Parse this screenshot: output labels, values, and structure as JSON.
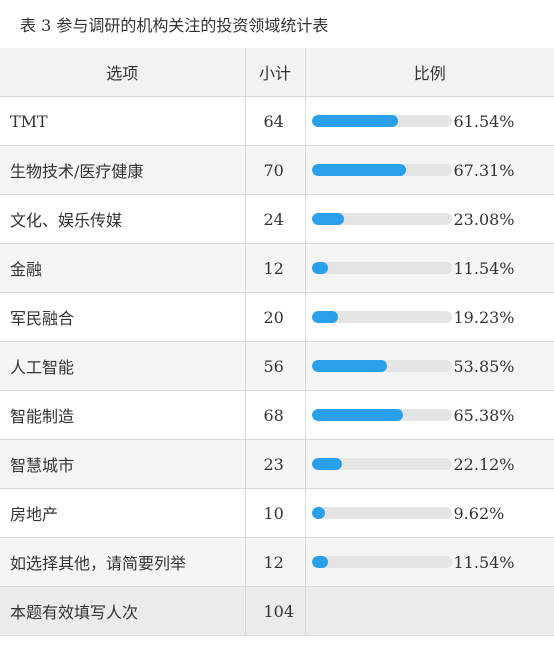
{
  "caption": "表 3  参与调研的机构关注的投资领域统计表",
  "table": {
    "headers": {
      "option": "选项",
      "count": "小计",
      "ratio": "比例"
    },
    "rows": [
      {
        "label": "TMT",
        "count": "64",
        "percent_text": "61.54%",
        "percent": 61.54
      },
      {
        "label": "生物技术/医疗健康",
        "count": "70",
        "percent_text": "67.31%",
        "percent": 67.31
      },
      {
        "label": "文化、娱乐传媒",
        "count": "24",
        "percent_text": "23.08%",
        "percent": 23.08
      },
      {
        "label": "金融",
        "count": "12",
        "percent_text": "11.54%",
        "percent": 11.54
      },
      {
        "label": "军民融合",
        "count": "20",
        "percent_text": "19.23%",
        "percent": 19.23
      },
      {
        "label": "人工智能",
        "count": "56",
        "percent_text": "53.85%",
        "percent": 53.85
      },
      {
        "label": "智能制造",
        "count": "68",
        "percent_text": "65.38%",
        "percent": 65.38
      },
      {
        "label": "智慧城市",
        "count": "23",
        "percent_text": "22.12%",
        "percent": 22.12
      },
      {
        "label": "房地产",
        "count": "10",
        "percent_text": "9.62%",
        "percent": 9.62
      },
      {
        "label": "如选择其他，请简要列举",
        "count": "12",
        "percent_text": "11.54%",
        "percent": 11.54
      }
    ],
    "footer": {
      "label": "本题有效填写人次",
      "count": "104"
    }
  },
  "colors": {
    "bar_fill": "#2aa0ea",
    "bar_track": "#e5e5e5"
  }
}
